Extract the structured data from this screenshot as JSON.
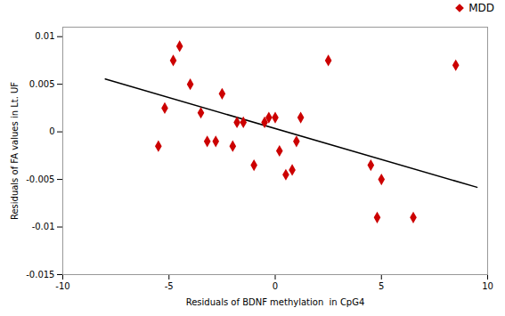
{
  "chart_data": {
    "type": "scatter",
    "xlabel": "Residuals of BDNF methylation  in CpG4",
    "ylabel": "Residuals of FA values in Lt. UF",
    "x": [
      -5.5,
      -5.2,
      -4.8,
      -4.5,
      -4.0,
      -3.5,
      -3.2,
      -2.8,
      -2.5,
      -2.0,
      -1.8,
      -1.5,
      -1.0,
      -0.5,
      -0.3,
      0.0,
      0.2,
      0.5,
      0.8,
      1.0,
      1.2,
      2.5,
      4.5,
      4.8,
      5.0,
      6.5,
      8.5
    ],
    "series": [
      {
        "name": "MDD",
        "type": "scatter",
        "color": "#cc0000",
        "marker": "diamond",
        "values": [
          -0.0015,
          0.0025,
          0.0075,
          0.009,
          0.005,
          0.002,
          -0.001,
          -0.001,
          0.004,
          -0.0015,
          0.001,
          0.001,
          -0.0035,
          0.001,
          0.0015,
          0.0015,
          -0.002,
          -0.0045,
          -0.004,
          -0.001,
          0.0015,
          0.0075,
          -0.0035,
          -0.009,
          -0.005,
          -0.009,
          0.007
        ]
      },
      {
        "type": "line",
        "color": "#000000",
        "x": [
          -8.0,
          9.5
        ],
        "values": [
          0.00555,
          -0.005825
        ]
      }
    ],
    "xlim": [
      -10,
      10
    ],
    "ylim": [
      -0.015,
      0.011
    ],
    "xticks": [
      -10,
      -5,
      0,
      5,
      10
    ],
    "yticks": [
      -0.015,
      -0.01,
      -0.005,
      0,
      0.005,
      0.01
    ],
    "grid": false,
    "legend": "upper right"
  }
}
